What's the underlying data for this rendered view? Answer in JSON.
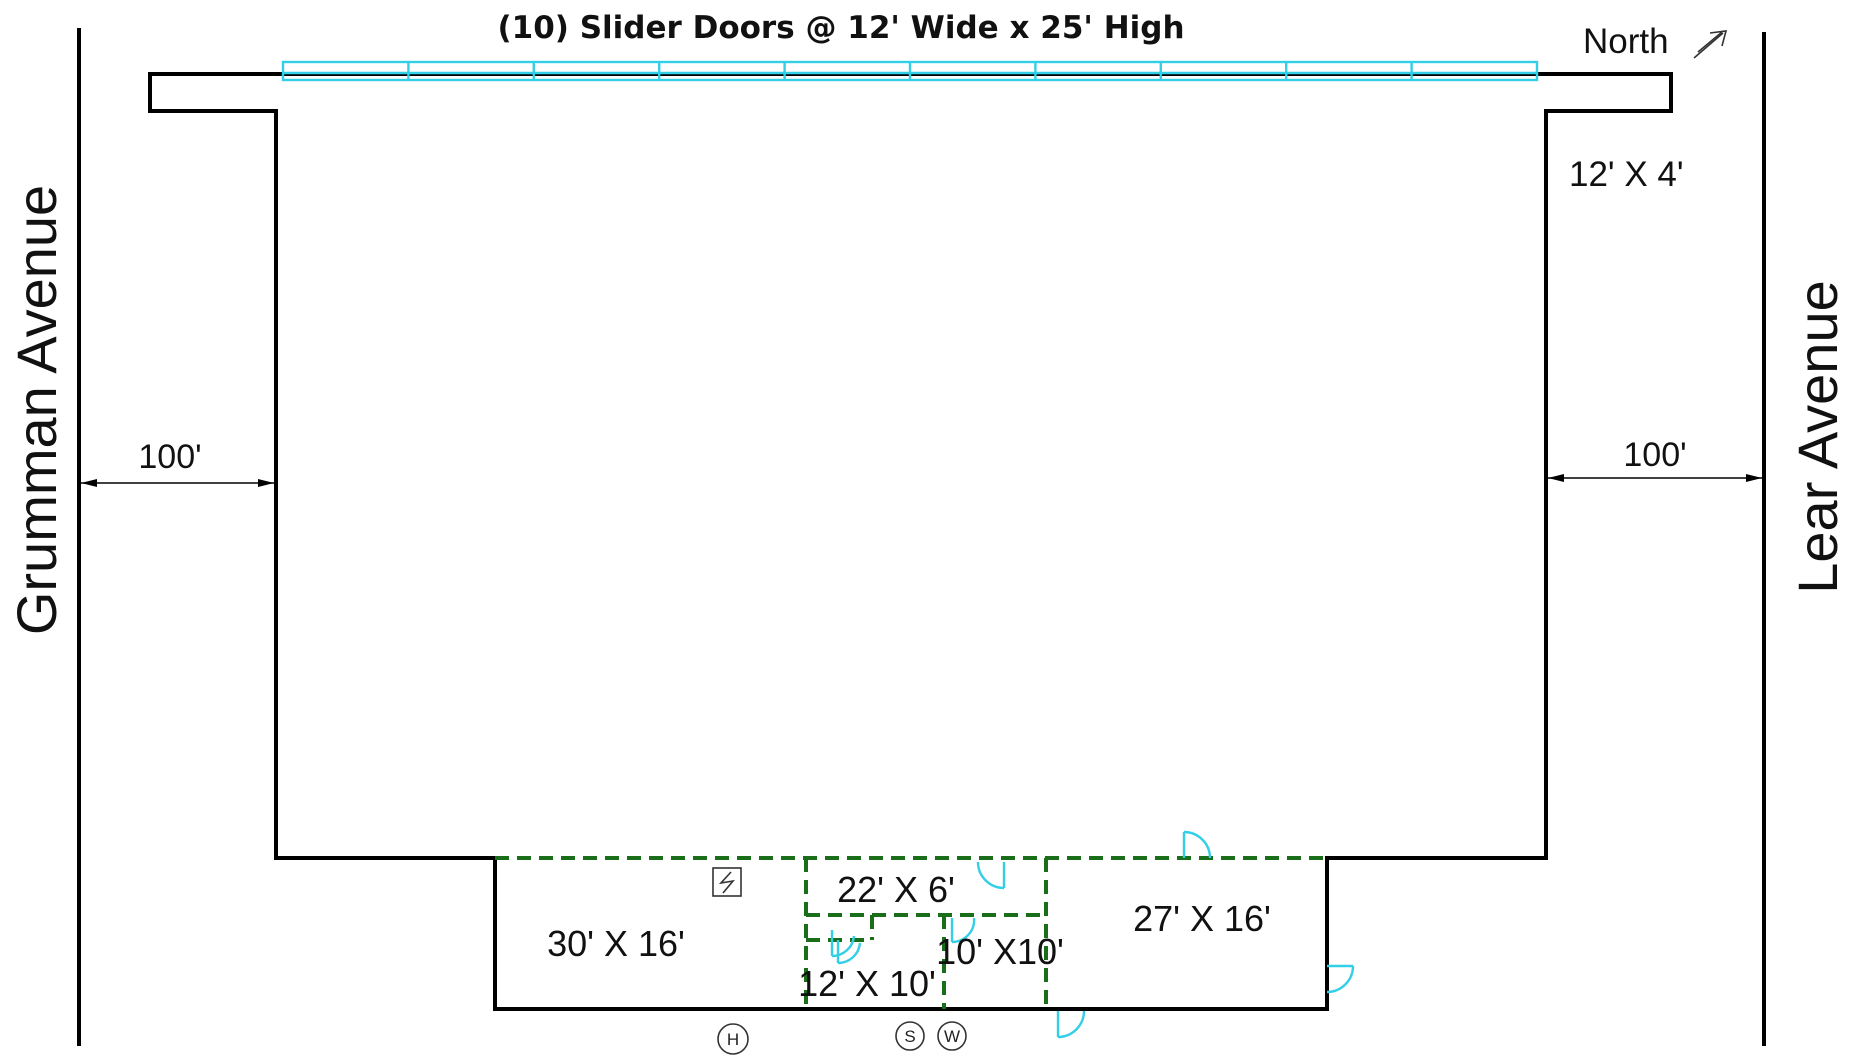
{
  "title": "(10) Slider Doors @ 12' Wide x 25' High",
  "north_label": "North",
  "streets": {
    "left": "Grumman Avenue",
    "right": "Lear Avenue"
  },
  "setbacks": {
    "left": "100'",
    "right": "100'"
  },
  "canopy_size": "12' X 4'",
  "slider_door_count": 10,
  "rooms": {
    "office_left": "30' X 16'",
    "corridor": "22' X 6'",
    "room_small_left": "12' X 10'",
    "room_small_right": "10' X10'",
    "office_right": "27' X 16'"
  },
  "symbols": {
    "electrical_panel": "lightning-bolt",
    "hydrant": "H",
    "sewer": "S",
    "water": "W"
  },
  "colors": {
    "walls": "#000000",
    "partitions": "#1a6e1a",
    "doors": "#33cfe6"
  }
}
